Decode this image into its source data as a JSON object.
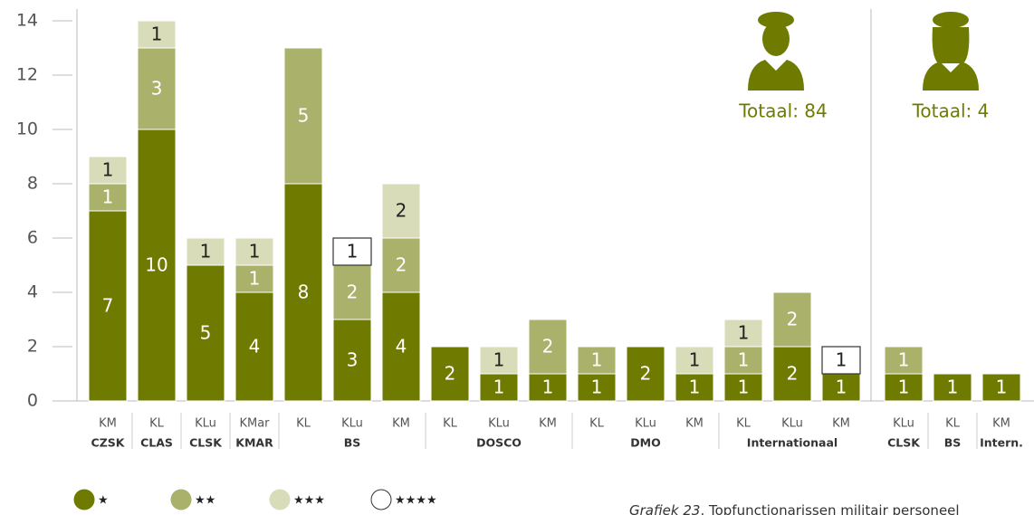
{
  "chart_data": {
    "type": "bar",
    "stacked": true,
    "ylim": [
      0,
      14
    ],
    "yticks": [
      0,
      2,
      4,
      6,
      8,
      10,
      12,
      14
    ],
    "panels": [
      {
        "annotation": "Totaal: 84",
        "groups": [
          {
            "label": "CZSK",
            "categories": [
              "KM"
            ]
          },
          {
            "label": "CLAS",
            "categories": [
              "KL"
            ]
          },
          {
            "label": "CLSK",
            "categories": [
              "KLu"
            ]
          },
          {
            "label": "KMAR",
            "categories": [
              "KMar"
            ]
          },
          {
            "label": "BS",
            "categories": [
              "KL",
              "KLu",
              "KM"
            ]
          },
          {
            "label": "DOSCO",
            "categories": [
              "KL",
              "KLu",
              "KM"
            ]
          },
          {
            "label": "DMO",
            "categories": [
              "KL",
              "KLu",
              "KM"
            ]
          },
          {
            "label": "Internationaal",
            "categories": [
              "KL",
              "KLu",
              "KM"
            ]
          }
        ]
      },
      {
        "annotation": "Totaal: 4",
        "groups": [
          {
            "label": "CLSK",
            "categories": [
              "KLu"
            ]
          },
          {
            "label": "BS",
            "categories": [
              "KL"
            ]
          },
          {
            "label": "Intern.",
            "categories": [
              "KM"
            ]
          }
        ]
      }
    ],
    "series": [
      {
        "name": "★",
        "color": "#6f7b00",
        "label_color": "#ffffff",
        "values": [
          7,
          10,
          5,
          4,
          8,
          3,
          4,
          2,
          1,
          1,
          1,
          2,
          1,
          1,
          2,
          1,
          1,
          1,
          1
        ]
      },
      {
        "name": "★★",
        "color": "#aab16b",
        "label_color": "#ffffff",
        "values": [
          1,
          3,
          null,
          1,
          5,
          2,
          2,
          null,
          null,
          2,
          1,
          null,
          null,
          1,
          2,
          null,
          1,
          null,
          null
        ]
      },
      {
        "name": "★★★",
        "color": "#d8dcb8",
        "label_color": "#222222",
        "values": [
          1,
          1,
          1,
          1,
          null,
          null,
          2,
          null,
          1,
          null,
          null,
          null,
          1,
          1,
          null,
          null,
          null,
          null,
          null
        ]
      },
      {
        "name": "★★★★",
        "color": "#ffffff",
        "stroke": "#333333",
        "label_color": "#222222",
        "values": [
          null,
          null,
          null,
          null,
          null,
          1,
          null,
          null,
          null,
          null,
          null,
          null,
          null,
          null,
          null,
          1,
          null,
          null,
          null
        ]
      }
    ],
    "caption_label": "Grafiek 23",
    "caption_text": ". Topfunctionarissen militair personeel"
  }
}
